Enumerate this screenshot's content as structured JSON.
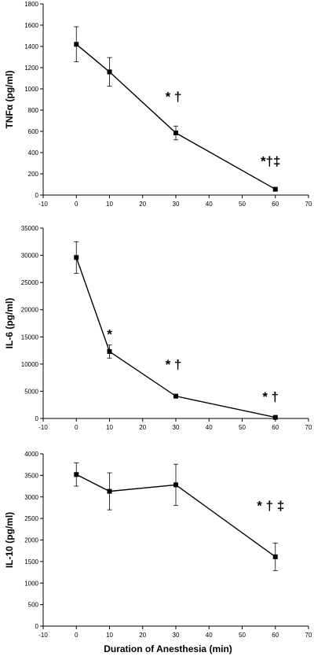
{
  "figure": {
    "xlabel": "Duration of Anesthesia (min)"
  },
  "chart_data": [
    {
      "type": "line",
      "ylabel": "TNFα (pg/ml)",
      "xlim": [
        -10,
        70
      ],
      "ylim": [
        0,
        1800
      ],
      "x_ticks": [
        -10,
        0,
        10,
        20,
        30,
        40,
        50,
        60,
        70
      ],
      "y_ticks": [
        0,
        200,
        400,
        600,
        800,
        1000,
        1200,
        1400,
        1600,
        1800
      ],
      "x": [
        0,
        10,
        30,
        60
      ],
      "y": [
        1420,
        1160,
        585,
        55
      ],
      "err": [
        165,
        135,
        65,
        15
      ],
      "annotations": [
        "",
        "",
        "* †",
        "*†‡"
      ],
      "grid": false
    },
    {
      "type": "line",
      "ylabel": "IL-6 (pg/ml)",
      "xlim": [
        -10,
        70
      ],
      "ylim": [
        0,
        35000
      ],
      "x_ticks": [
        -10,
        0,
        10,
        20,
        30,
        40,
        50,
        60,
        70
      ],
      "y_ticks": [
        0,
        5000,
        10000,
        15000,
        20000,
        25000,
        30000,
        35000
      ],
      "x": [
        0,
        10,
        30,
        60
      ],
      "y": [
        29600,
        12300,
        4100,
        200
      ],
      "err": [
        2900,
        1200,
        350,
        100
      ],
      "annotations": [
        "",
        "*",
        "* †",
        "* †"
      ],
      "grid": false
    },
    {
      "type": "line",
      "ylabel": "IL-10 (pg/ml)",
      "xlim": [
        -10,
        70
      ],
      "ylim": [
        0,
        4000
      ],
      "x_ticks": [
        -10,
        0,
        10,
        20,
        30,
        40,
        50,
        60,
        70
      ],
      "y_ticks": [
        0,
        500,
        1000,
        1500,
        2000,
        2500,
        3000,
        3500,
        4000
      ],
      "x": [
        0,
        10,
        30,
        60
      ],
      "y": [
        3520,
        3130,
        3280,
        1610
      ],
      "err": [
        270,
        430,
        480,
        320
      ],
      "annotations": [
        "",
        "",
        "",
        "* † ‡"
      ],
      "grid": false
    }
  ]
}
